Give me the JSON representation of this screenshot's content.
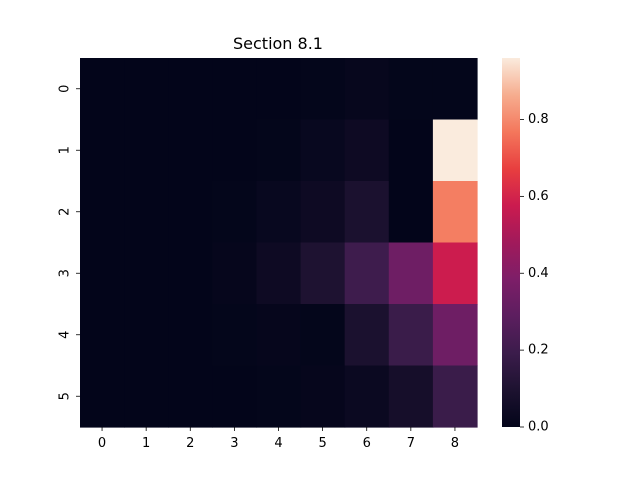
{
  "chart_data": {
    "type": "heatmap",
    "title": "Section 8.1",
    "xlabel": "",
    "ylabel": "",
    "x_categories": [
      "0",
      "1",
      "2",
      "3",
      "4",
      "5",
      "6",
      "7",
      "8"
    ],
    "y_categories": [
      "0",
      "1",
      "2",
      "3",
      "4",
      "5"
    ],
    "values": [
      [
        0.0,
        0.0,
        0.0,
        0.0,
        0.0,
        0.005,
        0.015,
        0.005,
        0.005
      ],
      [
        0.0,
        0.0,
        0.0,
        0.0,
        0.005,
        0.02,
        0.04,
        0.0,
        0.96
      ],
      [
        0.0,
        0.0,
        0.0,
        0.005,
        0.02,
        0.04,
        0.09,
        0.0,
        0.78
      ],
      [
        0.0,
        0.0,
        0.0,
        0.01,
        0.04,
        0.1,
        0.2,
        0.34,
        0.58
      ],
      [
        0.0,
        0.0,
        0.0,
        0.005,
        0.01,
        0.005,
        0.09,
        0.19,
        0.34
      ],
      [
        0.0,
        0.0,
        0.0,
        0.0,
        0.005,
        0.01,
        0.03,
        0.07,
        0.19
      ]
    ],
    "colorbar": {
      "min": 0.0,
      "max": 0.96,
      "ticks": [
        0.0,
        0.2,
        0.4,
        0.6,
        0.8
      ],
      "tick_labels": [
        "0.0",
        "0.2",
        "0.4",
        "0.6",
        "0.8"
      ],
      "colormap": "rocket"
    },
    "grid": false
  }
}
